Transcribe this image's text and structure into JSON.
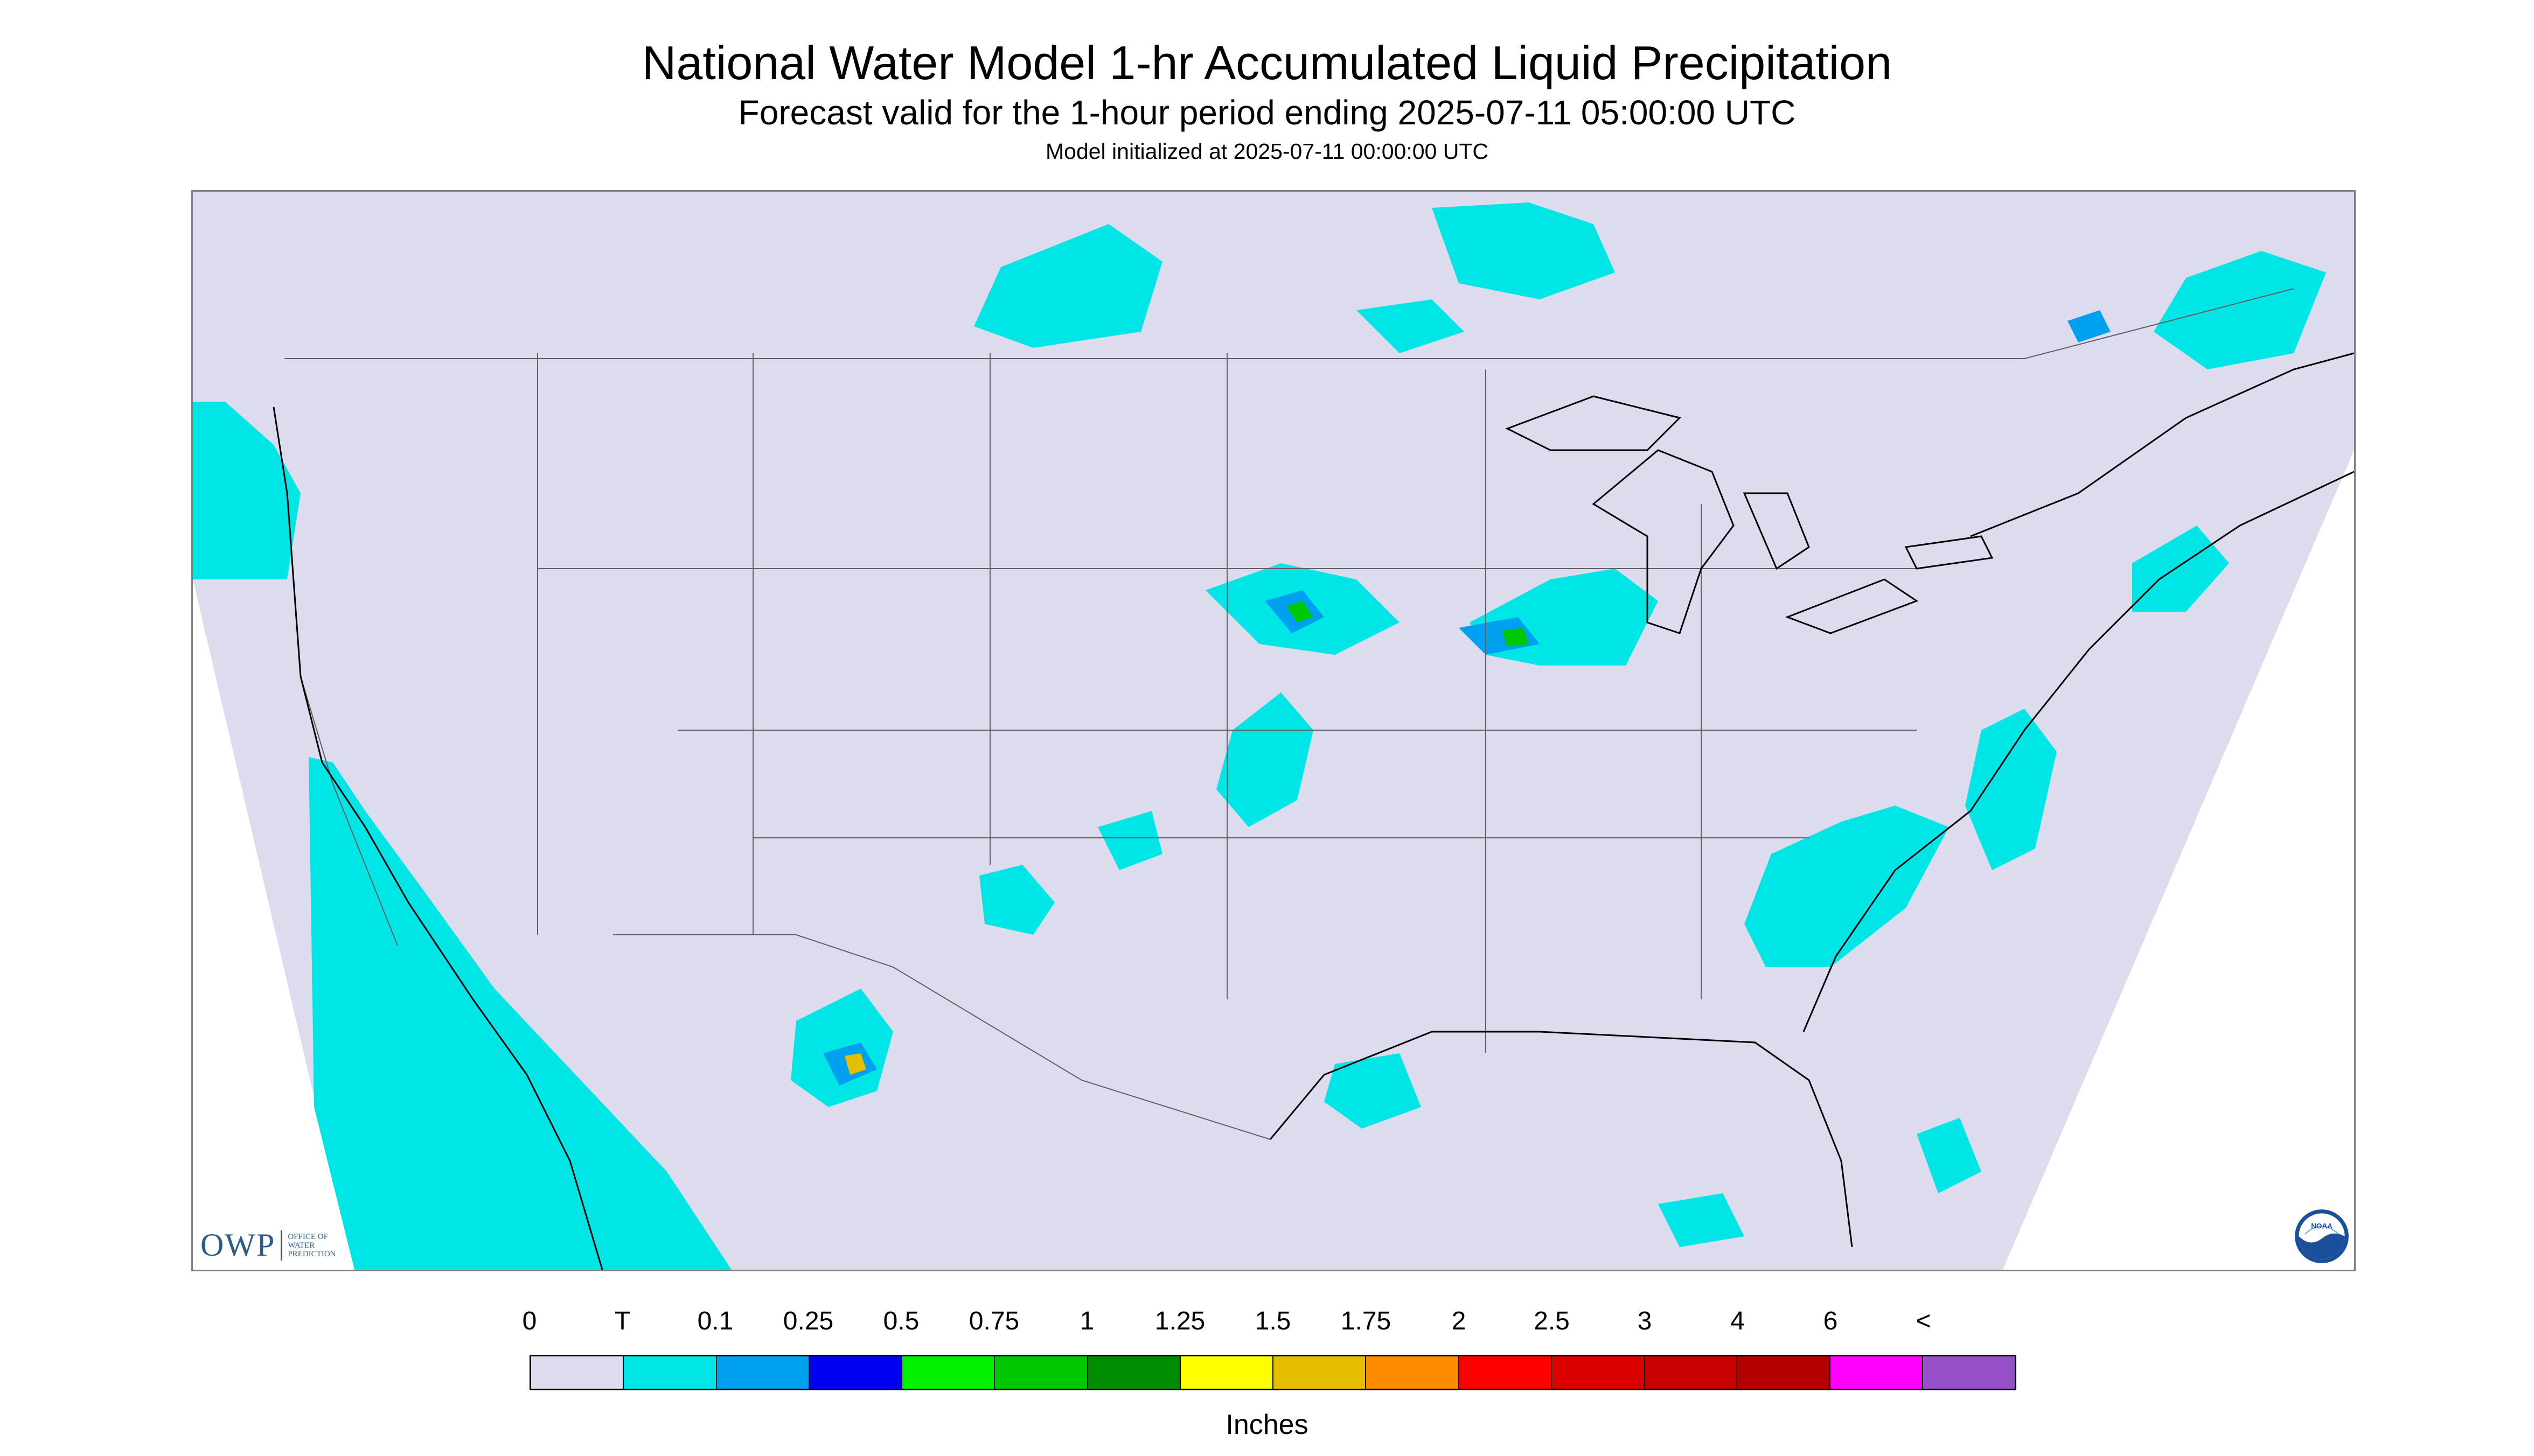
{
  "header": {
    "title": "National Water Model 1-hr Accumulated Liquid Precipitation",
    "subtitle": "Forecast valid for the 1-hour period ending 2025-07-11 05:00:00 UTC",
    "init": "Model initialized at 2025-07-11 00:00:00 UTC"
  },
  "logos": {
    "owp": "OWP",
    "owp_sub_1": "OFFICE OF",
    "owp_sub_2": "WATER",
    "owp_sub_3": "PREDICTION",
    "noaa": "NOAA"
  },
  "colors": {
    "background": "#dcdcee",
    "land_border": "#606060",
    "coast": "#000000"
  },
  "legend": {
    "ticks": [
      "0",
      "T",
      "0.1",
      "0.25",
      "0.5",
      "0.75",
      "1",
      "1.25",
      "1.5",
      "1.75",
      "2",
      "2.5",
      "3",
      "4",
      "6",
      "<"
    ],
    "colors": [
      "#dcdcee",
      "#00e5e5",
      "#00a0f0",
      "#0000f0",
      "#00f000",
      "#00c800",
      "#008c00",
      "#ffff00",
      "#e6be00",
      "#ff8c00",
      "#ff0000",
      "#dc0000",
      "#c80000",
      "#b40000",
      "#ff00ff",
      "#9650c8"
    ],
    "units": "Inches"
  }
}
